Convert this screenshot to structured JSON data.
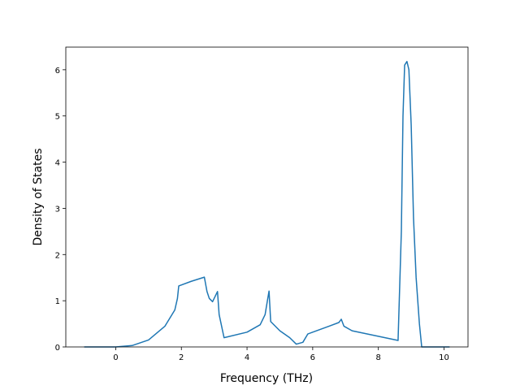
{
  "chart_data": {
    "type": "line",
    "x_label": "Frequency (THz)",
    "y_label": "Density of States",
    "x": [
      -0.96,
      0,
      0.5,
      1.0,
      1.5,
      1.8,
      1.88,
      1.92,
      2.3,
      2.7,
      2.78,
      2.85,
      2.95,
      3.1,
      3.15,
      3.3,
      4.0,
      4.4,
      4.55,
      4.62,
      4.67,
      4.72,
      5.0,
      5.3,
      5.5,
      5.7,
      5.85,
      6.0,
      6.5,
      6.8,
      6.87,
      6.95,
      7.2,
      8.6,
      8.7,
      8.75,
      8.8,
      8.87,
      8.93,
      9.0,
      9.07,
      9.15,
      9.25,
      9.32,
      10.17
    ],
    "values": [
      0,
      0,
      0.03,
      0.15,
      0.45,
      0.8,
      1.05,
      1.32,
      1.42,
      1.51,
      1.2,
      1.05,
      0.98,
      1.2,
      0.7,
      0.2,
      0.32,
      0.48,
      0.7,
      1.0,
      1.21,
      0.55,
      0.35,
      0.2,
      0.06,
      0.1,
      0.28,
      0.32,
      0.45,
      0.53,
      0.6,
      0.45,
      0.35,
      0.14,
      2.5,
      5.0,
      6.1,
      6.18,
      6.0,
      4.8,
      2.8,
      1.5,
      0.5,
      0,
      0
    ],
    "color": "#1f77b4",
    "xlim": [
      -1.52,
      10.73
    ],
    "ylim": [
      0,
      6.49
    ],
    "xticks": [
      0,
      2,
      4,
      6,
      8,
      10
    ],
    "yticks": [
      0,
      1,
      2,
      3,
      4,
      5,
      6
    ]
  }
}
